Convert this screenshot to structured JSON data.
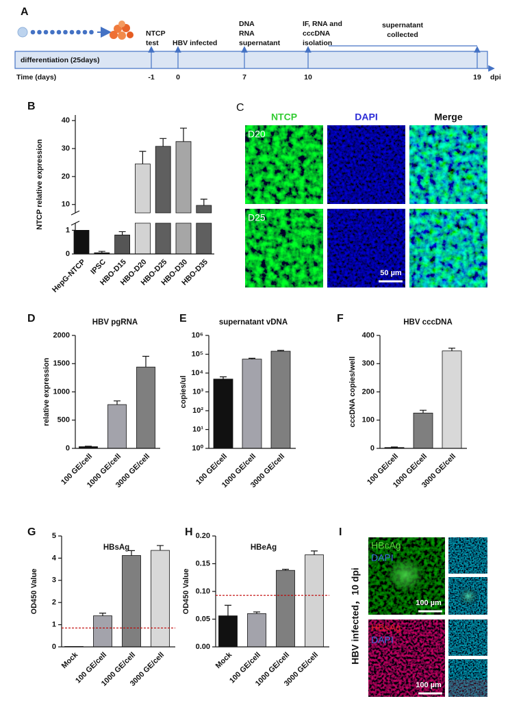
{
  "timeline": {
    "panel": "A",
    "bar_label": "differentiation  (25days)",
    "axis_label": "Time (days)",
    "unit": "dpi",
    "events": [
      {
        "label": [
          "NTCP",
          "test"
        ],
        "day": "-1"
      },
      {
        "label": [
          "HBV infected"
        ],
        "day": "0"
      },
      {
        "label": [
          "DNA",
          "RNA",
          "supernatant"
        ],
        "day": "7"
      },
      {
        "label": [
          "IF, RNA and",
          "cccDNA",
          "isolation"
        ],
        "day": "10"
      },
      {
        "label": [],
        "day": "19"
      }
    ],
    "span_label": [
      "supernatant",
      "collected"
    ]
  },
  "micrographs_c": {
    "panel": "C",
    "columns": [
      "NTCP",
      "DAPI",
      "Merge"
    ],
    "rows": [
      "D20",
      "D25"
    ],
    "scale_bar": "50 µm"
  },
  "micrographs_i": {
    "panel": "I",
    "side_label": "HBV infected，10 dpi",
    "blocks": [
      {
        "stain": "HBcAg",
        "counterstain": "DAPI",
        "scale_bar": "100 µm"
      },
      {
        "stain": "HBsAg",
        "counterstain": "DAPI",
        "scale_bar": "100 µm"
      }
    ]
  },
  "chart_data": [
    {
      "panel": "B",
      "type": "bar",
      "ylabel": "NTCP relative expression",
      "categories": [
        "HepG-NTCP",
        "IPSC",
        "HBO-D15",
        "HBO-D20",
        "HBO-D25",
        "HBO-D30",
        "HBO-D35"
      ],
      "values": [
        1,
        0.05,
        0.8,
        24.5,
        30.8,
        32.5,
        9.7
      ],
      "errors": [
        null,
        0.06,
        0.14,
        4.5,
        2.8,
        4.8,
        2.2
      ],
      "colors": [
        "#111111",
        "#111111",
        "#555555",
        "#d3d3d3",
        "#5f5f5f",
        "#a6a6a6",
        "#5f5f5f"
      ],
      "segments": [
        {
          "ylim": [
            0,
            1.3
          ],
          "yticks": [
            0,
            1
          ]
        },
        {
          "ylim": [
            7,
            42
          ],
          "yticks": [
            10,
            20,
            30,
            40
          ]
        }
      ]
    },
    {
      "panel": "D",
      "type": "bar",
      "title": "HBV pgRNA",
      "ylabel": "relative expression",
      "categories": [
        "100 GE/cell",
        "1000 GE/cell",
        "3000 GE/cell"
      ],
      "values": [
        30,
        775,
        1440
      ],
      "errors": [
        8,
        65,
        190
      ],
      "colors": [
        "#111111",
        "#a3a3ab",
        "#7f7f7f"
      ],
      "ylim": [
        0,
        2000
      ],
      "yticks": [
        0,
        500,
        1000,
        1500,
        2000
      ]
    },
    {
      "panel": "E",
      "type": "bar",
      "title": "supernatant vDNA",
      "ylabel": "copies/ul",
      "log_scale": true,
      "categories": [
        "100 GE/cell",
        "1000 GE/cell",
        "3000 GE/cell"
      ],
      "values": [
        4800,
        55000,
        145000
      ],
      "errors": [
        1500,
        6000,
        15000
      ],
      "colors": [
        "#111111",
        "#a3a3ab",
        "#7f7f7f"
      ],
      "ylim": [
        1,
        1000000
      ],
      "yticks": [
        {
          "value": 1,
          "label": "10⁰"
        },
        {
          "value": 10,
          "label": "10¹"
        },
        {
          "value": 100,
          "label": "10²"
        },
        {
          "value": 1000,
          "label": "10³"
        },
        {
          "value": 10000,
          "label": "10⁴"
        },
        {
          "value": 100000,
          "label": "10⁵"
        },
        {
          "value": 1000000,
          "label": "10⁶"
        }
      ]
    },
    {
      "panel": "F",
      "type": "bar",
      "title": "HBV cccDNA",
      "ylabel": "cccDNA copies/well",
      "categories": [
        "100 GE/cell",
        "1000 GE/cell",
        "3000 GE/cell"
      ],
      "values": [
        3,
        125,
        345
      ],
      "errors": [
        2,
        10,
        10
      ],
      "colors": [
        "#111111",
        "#7f7f7f",
        "#d8d8d8"
      ],
      "ylim": [
        0,
        400
      ],
      "yticks": [
        0,
        100,
        200,
        300,
        400
      ]
    },
    {
      "panel": "G",
      "type": "bar",
      "title": "HBsAg",
      "ylabel": "OD450 Value",
      "categories": [
        "Mock",
        "100 GE/cell",
        "1000 GE/cell",
        "3000 GE/cell"
      ],
      "values": [
        0.02,
        1.4,
        4.12,
        4.35
      ],
      "errors": [
        null,
        0.12,
        0.22,
        0.22
      ],
      "colors": [
        "#111111",
        "#a3a3ab",
        "#7f7f7f",
        "#d8d8d8"
      ],
      "ylim": [
        0,
        5
      ],
      "yticks": [
        0,
        1,
        2,
        3,
        4,
        5
      ],
      "threshold": 0.85,
      "threshold_color": "#c00000"
    },
    {
      "panel": "H",
      "type": "bar",
      "title": "HBeAg",
      "ylabel": "OD450 Value",
      "categories": [
        "Mock",
        "100 GE/cell",
        "1000 GE/cell",
        "3000 GE/cell"
      ],
      "values": [
        0.056,
        0.06,
        0.138,
        0.166
      ],
      "errors": [
        0.019,
        0.003,
        0.002,
        0.007
      ],
      "colors": [
        "#111111",
        "#a3a3ab",
        "#7f7f7f",
        "#d3d3d3"
      ],
      "ylim": [
        0,
        0.2
      ],
      "yticks": [
        {
          "value": 0,
          "label": "0.00"
        },
        {
          "value": 0.05,
          "label": "0.05"
        },
        {
          "value": 0.1,
          "label": "0.10"
        },
        {
          "value": 0.15,
          "label": "0.15"
        },
        {
          "value": 0.2,
          "label": "0.20"
        }
      ],
      "threshold": 0.093,
      "threshold_color": "#c00000"
    }
  ]
}
